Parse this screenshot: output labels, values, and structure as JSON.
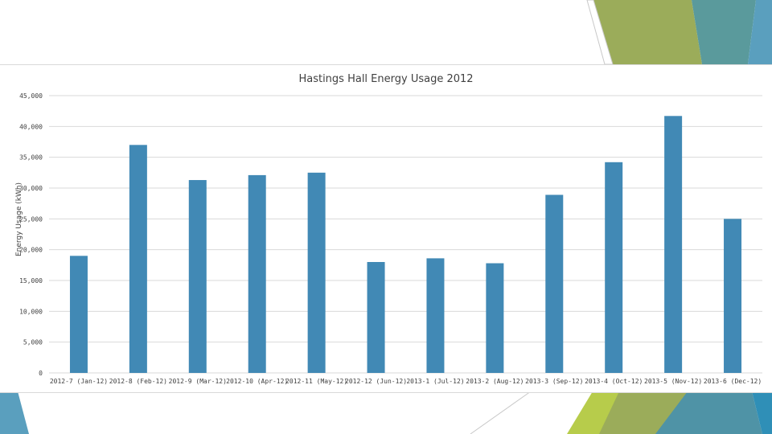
{
  "slide": {
    "accent_colors": [
      "#9bac5a",
      "#5a9a9c",
      "#5a9fbe",
      "#b7cc4b",
      "#2f8fb7"
    ]
  },
  "chart_data": {
    "type": "bar",
    "title": "Hastings Hall Energy Usage 2012",
    "xlabel": "",
    "ylabel": "Energy Usage (kWh)",
    "categories": [
      "2012-7 (Jan-12)",
      "2012-8 (Feb-12)",
      "2012-9 (Mar-12)",
      "2012-10 (Apr-12)",
      "2012-11 (May-12)",
      "2012-12 (Jun-12)",
      "2013-1 (Jul-12)",
      "2013-2 (Aug-12)",
      "2013-3 (Sep-12)",
      "2013-4 (Oct-12)",
      "2013-5 (Nov-12)",
      "2013-6 (Dec-12)"
    ],
    "values": [
      19000,
      37000,
      31300,
      32100,
      32500,
      18000,
      18600,
      17800,
      28900,
      34200,
      41700,
      25000
    ],
    "ylim": [
      0,
      45000
    ],
    "y_ticks": [
      "0",
      "5,000",
      "10,000",
      "15,000",
      "20,000",
      "25,000",
      "30,000",
      "35,000",
      "40,000",
      "45,000"
    ],
    "bar_color": "#4189b5",
    "grid": true,
    "legend": "none"
  }
}
